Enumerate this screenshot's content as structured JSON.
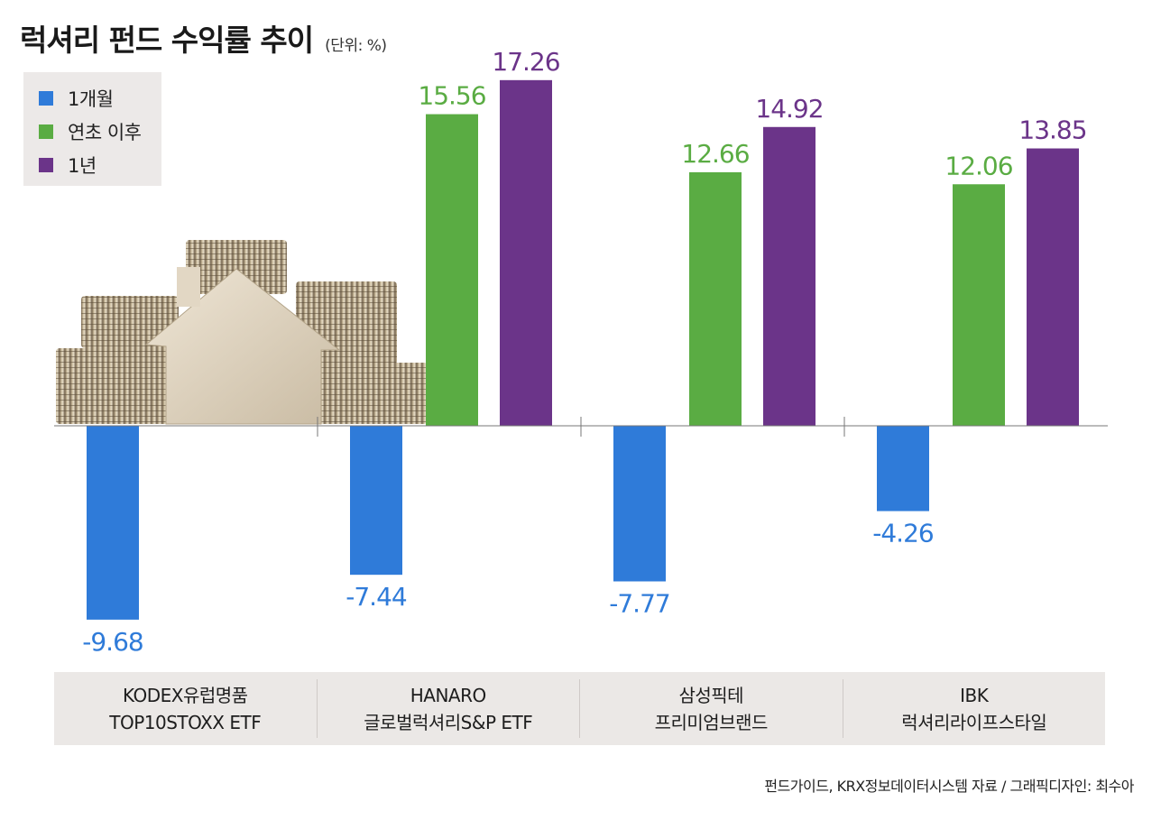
{
  "header": {
    "title": "럭셔리 펀드 수익률 추이",
    "unit": "(단위: %)"
  },
  "legend": [
    {
      "label": "1개월",
      "color": "#2f7bd9"
    },
    {
      "label": "연초 이후",
      "color": "#5aac43"
    },
    {
      "label": "1년",
      "color": "#6b3489"
    }
  ],
  "categories": [
    {
      "line1": "KODEX유럽명품",
      "line2": "TOP10STOXX ETF"
    },
    {
      "line1": "HANARO",
      "line2": "글로벌럭셔리S&P ETF"
    },
    {
      "line1": "삼성픽테",
      "line2": "프리미엄브랜드"
    },
    {
      "line1": "IBK",
      "line2": "럭셔리라이프스타일"
    }
  ],
  "footer": {
    "source": "펀드가이드, KRX정보데이터시스템 자료 / 그래픽디자인: 최수아"
  },
  "chart_data": {
    "type": "bar",
    "categories": [
      "KODEX유럽명품 TOP10STOXX ETF",
      "HANARO 글로벌럭셔리S&P ETF",
      "삼성픽테 프리미엄브랜드",
      "IBK 럭셔리라이프스타일"
    ],
    "series": [
      {
        "name": "1개월",
        "color": "#2f7bd9",
        "values": [
          -9.68,
          -7.44,
          -7.77,
          -4.26
        ],
        "labels": [
          "-9.68",
          "-7.44",
          "-7.77",
          "-4.26"
        ]
      },
      {
        "name": "연초 이후",
        "color": "#5aac43",
        "values": [
          null,
          15.56,
          12.66,
          12.06
        ],
        "labels": [
          "",
          "15.56",
          "12.66",
          "12.06"
        ]
      },
      {
        "name": "1년",
        "color": "#6b3489",
        "values": [
          null,
          17.26,
          14.92,
          13.85
        ],
        "labels": [
          "",
          "17.26",
          "14.92",
          "13.85"
        ]
      }
    ],
    "title": "럭셔리 펀드 수익률 추이",
    "unit": "(단위: %)",
    "legend_position": "top-left",
    "grid": false
  },
  "illustration": {
    "name": "coins-and-house-photo"
  }
}
